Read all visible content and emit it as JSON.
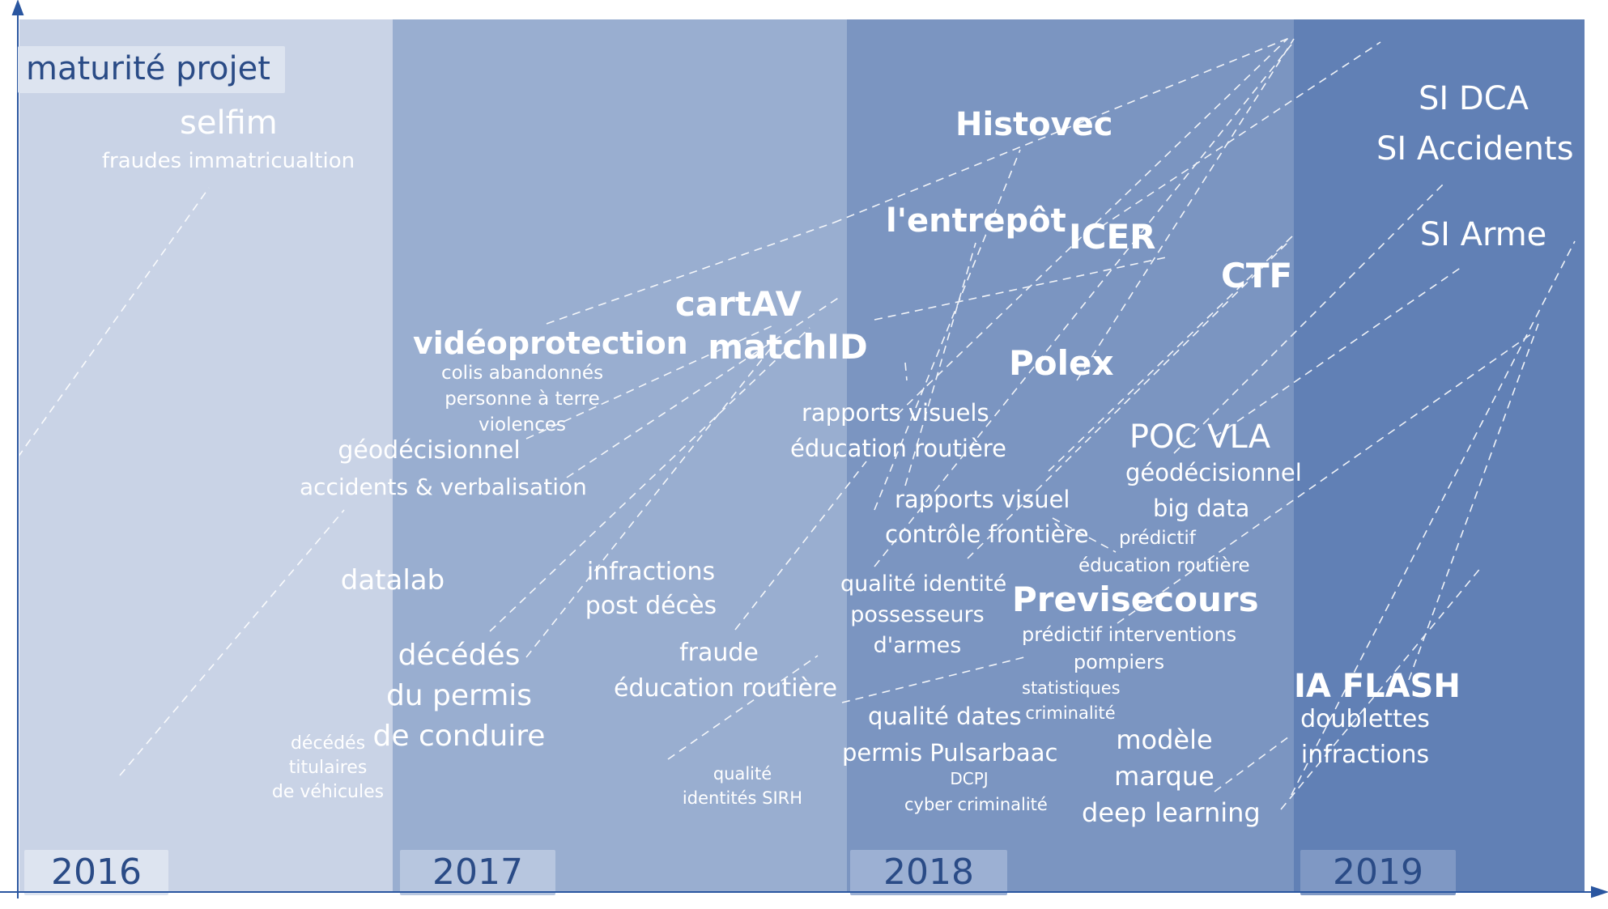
{
  "title": "maturité projet",
  "colors": {
    "band_2016": "#c9d3e6",
    "band_2017": "#99aed0",
    "band_2018": "#7b95c1",
    "band_2019": "#6180b5",
    "axis": "#2a56a0",
    "year_text": "#2a4b86",
    "label_text": "#ffffff"
  },
  "years": [
    "2016",
    "2017",
    "2018",
    "2019"
  ],
  "projects": {
    "selfim": {
      "name": "selfim",
      "detail": "fraudes immatricualtion"
    },
    "videoprotection": {
      "name": "vidéoprotection",
      "details": [
        "colis abandonnés",
        "personne à terre",
        "violences"
      ]
    },
    "geodecisionnel": {
      "lines": [
        "géodécisionnel",
        "accidents & verbalisation"
      ]
    },
    "datalab": {
      "name": "datalab"
    },
    "decedes_permis": {
      "lines": [
        "décédés",
        "du permis",
        "de conduire"
      ]
    },
    "decedes_titulaires": {
      "lines": [
        "décédés",
        "titulaires",
        "de véhicules"
      ]
    },
    "infractions": {
      "lines": [
        "infractions",
        "post décès"
      ]
    },
    "cartav": {
      "name": "cartAV"
    },
    "matchid": {
      "name": "matchID"
    },
    "fraude": {
      "lines": [
        "fraude",
        "éducation routière"
      ]
    },
    "qualite_sirh": {
      "lines": [
        "qualité",
        "identités SIRH"
      ]
    },
    "histovec": {
      "name": "Histovec"
    },
    "entrepot": {
      "name": "l'entrepôt"
    },
    "icer": {
      "name": "ICER"
    },
    "ctf": {
      "name": "CTF"
    },
    "polex": {
      "name": "Polex"
    },
    "rapports_visuels": {
      "lines": [
        "rapports visuels",
        "éducation routière"
      ]
    },
    "rapports_visuel": {
      "lines": [
        "rapports visuel",
        "contrôle frontière"
      ]
    },
    "qualite_identite": {
      "lines": [
        "qualité identité",
        "possesseurs",
        "d'armes"
      ]
    },
    "previsecours": {
      "name": "Previsecours",
      "details": [
        "prédictif interventions",
        "pompiers"
      ]
    },
    "statistiques": {
      "lines": [
        "statistiques",
        "criminalité"
      ]
    },
    "qualite_dates": {
      "lines": [
        "qualité dates",
        "permis Pulsarbaac"
      ]
    },
    "dcpj": {
      "lines": [
        "DCPJ",
        "cyber criminalité"
      ]
    },
    "modele": {
      "lines": [
        "modèle",
        "marque",
        "deep learning"
      ]
    },
    "poc_vla": {
      "name": "POC VLA",
      "details": [
        "géodécisionnel",
        "big data"
      ]
    },
    "predictif": {
      "lines": [
        "prédictif",
        "éducation routière"
      ]
    },
    "si_dca": {
      "name": "SI DCA"
    },
    "si_accidents": {
      "name": "SI Accidents"
    },
    "si_arme": {
      "name": "SI Arme"
    },
    "ia_flash": {
      "name": "IA FLASH",
      "details": [
        "doublettes",
        "infractions"
      ]
    }
  }
}
